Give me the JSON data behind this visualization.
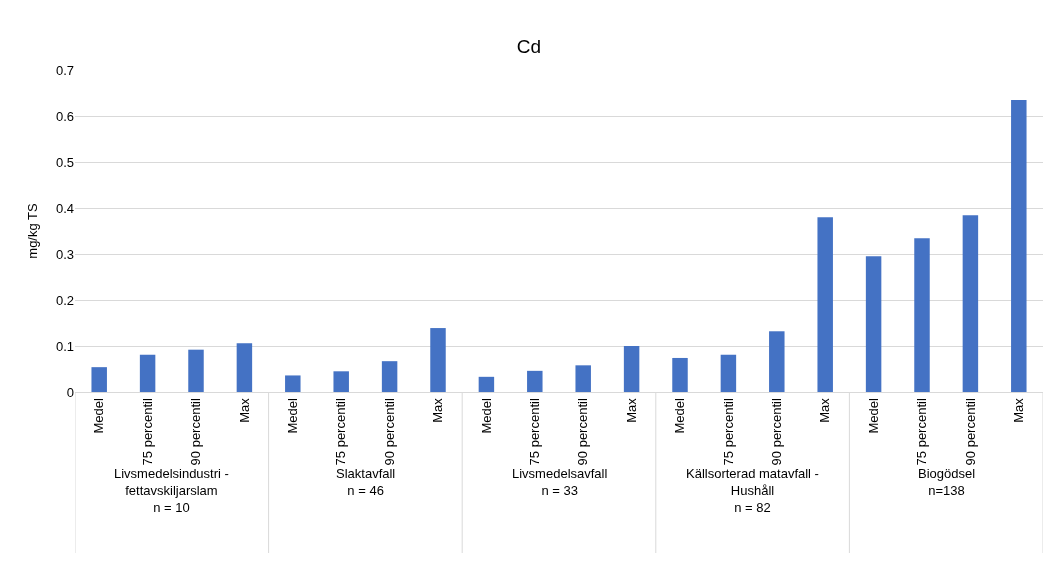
{
  "chart_data": {
    "type": "bar",
    "title": "Cd",
    "ylabel": "mg/kg TS",
    "categories": [
      "Medel",
      "75 percentil",
      "90 percentil",
      "Max",
      "Medel",
      "75 percentil",
      "90 percentil",
      "Max",
      "Medel",
      "75 percentil",
      "90 percentil",
      "Max",
      "Medel",
      "75 percentil",
      "90 percentil",
      "Max",
      "Medel",
      "75 percentil",
      "90 percentil",
      "Max"
    ],
    "annotations": [
      "Livsmedelsindustri -\nfettavskiljarslam\nn = 10",
      "Slaktavfall\nn = 46",
      "Livsmedelsavfall\nn = 33",
      "Källsorterad matavfall -\nHushåll\nn = 82",
      "Biogödsel\nn=138"
    ],
    "values": [
      0.054,
      0.081,
      0.092,
      0.106,
      0.036,
      0.045,
      0.067,
      0.139,
      0.033,
      0.046,
      0.058,
      0.1,
      0.074,
      0.081,
      0.132,
      0.38,
      0.295,
      0.334,
      0.384,
      0.635
    ],
    "color": "#4472c4",
    "ylim": [
      0,
      0.7
    ],
    "yticks": [
      0,
      0.1,
      0.2,
      0.3,
      0.4,
      0.5,
      0.6,
      0.7
    ],
    "grid": "y",
    "legend": false
  }
}
